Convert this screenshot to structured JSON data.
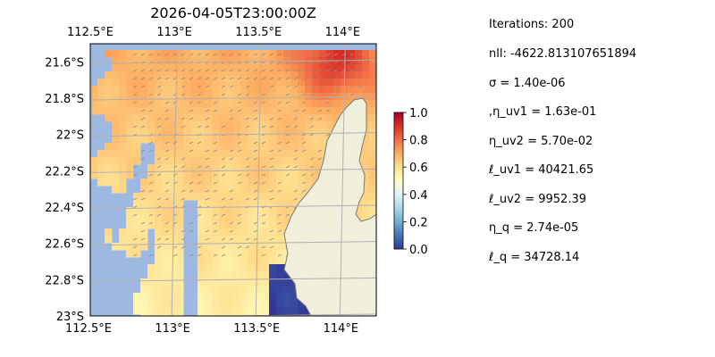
{
  "chart_data": {
    "type": "heatmap",
    "title": "2026-04-05T23:00:00Z",
    "x_tick_labels": [
      "112.5°E",
      "113°E",
      "113.5°E",
      "114°E"
    ],
    "x_ticks": [
      112.5,
      113.0,
      113.5,
      114.0
    ],
    "y_tick_labels": [
      "21.6°S",
      "21.8°S",
      "22°S",
      "22.2°S",
      "22.4°S",
      "22.6°S",
      "22.8°S",
      "23°S"
    ],
    "y_ticks": [
      -21.6,
      -21.8,
      -22.0,
      -22.2,
      -22.4,
      -22.6,
      -22.8,
      -23.0
    ],
    "xlim": [
      112.5,
      114.2
    ],
    "ylim": [
      -23.0,
      -21.5
    ],
    "colorbar": {
      "colormap": "RdYlBu_r",
      "range": [
        0.0,
        1.0
      ],
      "tick_labels": [
        "0.0",
        "0.2",
        "0.4",
        "0.6",
        "0.8",
        "1.0"
      ],
      "ticks": [
        0.0,
        0.2,
        0.4,
        0.6,
        0.8,
        1.0
      ]
    },
    "grid": true,
    "land_color": "#efefdc",
    "ocean_mask_color": "#9db9e1"
  },
  "stats": [
    "Iterations: 200",
    "nll: -4622.813107651894",
    "σ = 1.40e-06",
    ",η_uv1 = 1.63e-01",
    "η_uv2 = 5.70e-02",
    "ℓ_uv1 = 40421.65",
    "ℓ_uv2 = 9952.39",
    "η_q = 2.74e-05",
    "ℓ_q = 34728.14"
  ]
}
